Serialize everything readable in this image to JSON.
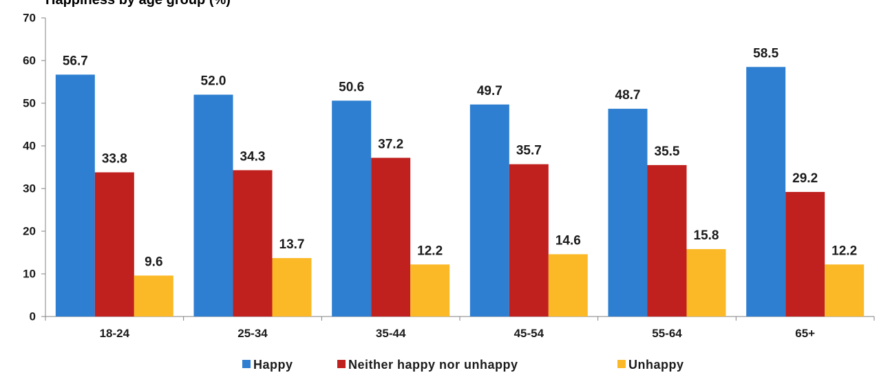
{
  "chart_data": {
    "type": "bar",
    "title": "Happiness by age group (%)",
    "categories": [
      "18-24",
      "25-34",
      "35-44",
      "45-54",
      "55-64",
      "65+"
    ],
    "series": [
      {
        "name": "Happy",
        "color": "#2e7fd1",
        "values": [
          56.7,
          52.0,
          50.6,
          49.7,
          48.7,
          58.5
        ],
        "labels": [
          "56.7",
          "52.0",
          "50.6",
          "49.7",
          "48.7",
          "58.5"
        ]
      },
      {
        "name": "Neither happy nor unhappy",
        "color": "#c0201e",
        "values": [
          33.8,
          34.3,
          37.2,
          35.7,
          35.5,
          29.2
        ],
        "labels": [
          "33.8",
          "34.3",
          "37.2",
          "35.7",
          "35.5",
          "29.2"
        ]
      },
      {
        "name": "Unhappy",
        "color": "#fbb927",
        "values": [
          9.6,
          13.7,
          12.2,
          14.6,
          15.8,
          12.2
        ],
        "labels": [
          "9.6",
          "13.7",
          "12.2",
          "14.6",
          "15.8",
          "12.2"
        ]
      }
    ],
    "ylim": [
      0,
      70
    ],
    "yticks": [
      "0",
      "10",
      "20",
      "30",
      "40",
      "50",
      "60",
      "70"
    ],
    "grid": false,
    "legend_position": "bottom"
  }
}
